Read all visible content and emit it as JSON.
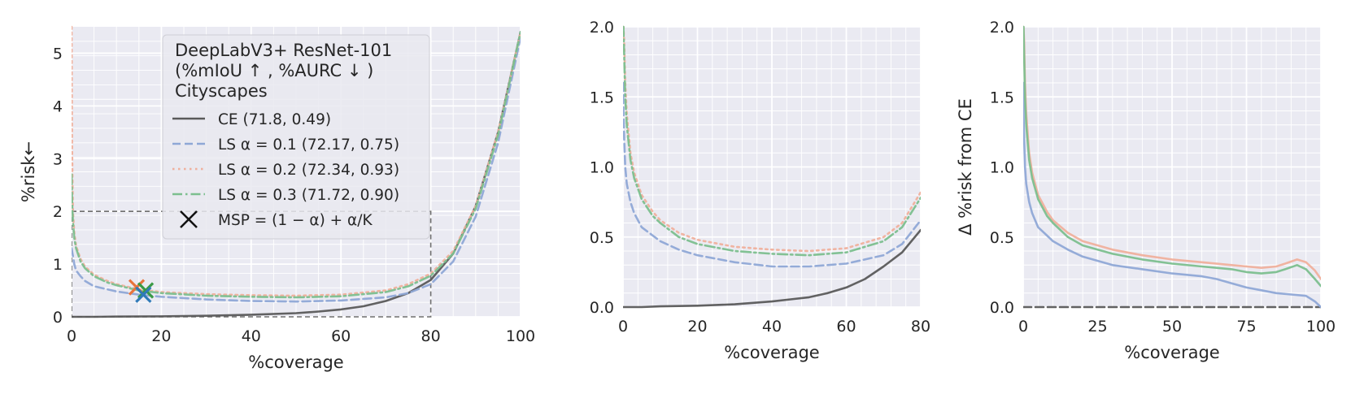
{
  "chart_data": [
    {
      "type": "line",
      "xlabel": "%coverage",
      "ylabel": "%risk←",
      "xlim": [
        0,
        100
      ],
      "ylim": [
        0,
        5.5
      ],
      "xticks": [
        "0",
        "20",
        "40",
        "60",
        "80",
        "100"
      ],
      "yticks": [
        "0",
        "1",
        "2",
        "3",
        "4",
        "5"
      ],
      "grid": true,
      "legend": {
        "placement": "upper-center",
        "title_lines": [
          "DeepLabV3+ ResNet-101",
          "(%mIoU ↑ , %AURC ↓ )",
          "Cityscapes"
        ],
        "entries": [
          "CE (71.8, 0.49)",
          "LS α = 0.1 (72.17, 0.75)",
          "LS α = 0.2 (72.34, 0.93)",
          "LS α = 0.3 (71.72, 0.90)",
          "MSP = (1 − α) + α/K"
        ]
      },
      "inset_box": {
        "x": [
          0,
          80
        ],
        "y": [
          0,
          2
        ]
      },
      "series": [
        {
          "name": "CE (71.8, 0.49)",
          "color": "#5a5a5a",
          "style": "solid",
          "x": [
            0,
            0.3,
            1,
            5,
            10,
            20,
            30,
            40,
            50,
            55,
            60,
            65,
            70,
            75,
            80,
            85,
            90,
            95,
            100
          ],
          "y": [
            0.0,
            0.0,
            0.0,
            0.0,
            0.005,
            0.01,
            0.02,
            0.04,
            0.07,
            0.1,
            0.14,
            0.2,
            0.3,
            0.45,
            0.7,
            1.2,
            2.1,
            3.5,
            5.4
          ]
        },
        {
          "name": "LS α = 0.1 (72.17, 0.75)",
          "color": "#8fa8d6",
          "style": "dashed",
          "x": [
            0,
            0.1,
            0.3,
            0.6,
            1,
            2,
            3,
            5,
            8,
            10,
            15,
            20,
            30,
            40,
            50,
            60,
            70,
            75,
            80,
            85,
            90,
            95,
            100
          ],
          "y": [
            1.3,
            1.25,
            1.15,
            1.0,
            0.88,
            0.77,
            0.68,
            0.58,
            0.52,
            0.48,
            0.42,
            0.38,
            0.33,
            0.3,
            0.29,
            0.31,
            0.37,
            0.45,
            0.62,
            1.05,
            1.9,
            3.3,
            5.3
          ]
        },
        {
          "name": "LS α = 0.2 (72.34, 0.93)",
          "color": "#f0b09c",
          "style": "dotted",
          "x": [
            0,
            0.1,
            0.3,
            0.6,
            1,
            2,
            3,
            5,
            8,
            10,
            15,
            20,
            30,
            40,
            50,
            60,
            70,
            75,
            80,
            85,
            90,
            95,
            100
          ],
          "y": [
            5.5,
            3.2,
            2.0,
            1.6,
            1.35,
            1.1,
            0.95,
            0.8,
            0.68,
            0.62,
            0.52,
            0.47,
            0.43,
            0.41,
            0.4,
            0.42,
            0.5,
            0.62,
            0.82,
            1.25,
            2.1,
            3.5,
            5.4
          ]
        },
        {
          "name": "LS α = 0.3 (71.72, 0.90)",
          "color": "#7cbf8e",
          "style": "dashdot",
          "x": [
            0,
            0.1,
            0.3,
            0.6,
            1,
            2,
            3,
            5,
            8,
            10,
            15,
            20,
            30,
            40,
            50,
            60,
            70,
            75,
            80,
            85,
            90,
            95,
            100
          ],
          "y": [
            2.7,
            2.2,
            1.8,
            1.5,
            1.3,
            1.05,
            0.92,
            0.77,
            0.65,
            0.6,
            0.5,
            0.45,
            0.4,
            0.38,
            0.37,
            0.39,
            0.47,
            0.58,
            0.78,
            1.2,
            2.05,
            3.45,
            5.4
          ]
        }
      ],
      "markers": [
        {
          "label": "MSP = (1 − α) + α/K",
          "x": 14.5,
          "y": 0.56,
          "color": "#e8743b"
        },
        {
          "label": "MSP = (1 − α) + α/K",
          "x": 16.5,
          "y": 0.5,
          "color": "#3a9a46"
        },
        {
          "label": "MSP = (1 − α) + α/K",
          "x": 16.0,
          "y": 0.42,
          "color": "#2f7ab8"
        }
      ]
    },
    {
      "type": "line",
      "xlabel": "%coverage",
      "ylabel": "",
      "xlim": [
        0,
        80
      ],
      "ylim": [
        0,
        2.0
      ],
      "xticks": [
        "0",
        "20",
        "40",
        "60",
        "80"
      ],
      "yticks": [
        "0.0",
        "0.5",
        "1.0",
        "1.5",
        "2.0"
      ],
      "grid": true,
      "series": [
        {
          "name": "CE (71.8, 0.49)",
          "color": "#5a5a5a",
          "style": "solid",
          "x": [
            0,
            0.3,
            1,
            5,
            10,
            20,
            30,
            40,
            45,
            50,
            55,
            60,
            65,
            70,
            75,
            80
          ],
          "y": [
            0.0,
            0.0,
            0.0,
            0.0,
            0.005,
            0.01,
            0.02,
            0.04,
            0.055,
            0.07,
            0.1,
            0.14,
            0.2,
            0.29,
            0.39,
            0.55
          ]
        },
        {
          "name": "LS α = 0.1 (72.17, 0.75)",
          "color": "#8fa8d6",
          "style": "dashed",
          "x": [
            0,
            0.1,
            0.3,
            0.6,
            1,
            2,
            3,
            5,
            8,
            10,
            15,
            20,
            30,
            40,
            50,
            60,
            70,
            75,
            80
          ],
          "y": [
            1.6,
            1.4,
            1.2,
            1.0,
            0.88,
            0.75,
            0.67,
            0.57,
            0.51,
            0.47,
            0.41,
            0.37,
            0.32,
            0.29,
            0.29,
            0.31,
            0.37,
            0.45,
            0.62
          ]
        },
        {
          "name": "LS α = 0.2 (72.34, 0.93)",
          "color": "#f0b09c",
          "style": "dotted",
          "x": [
            0,
            0.1,
            0.3,
            0.6,
            1,
            2,
            3,
            5,
            8,
            10,
            15,
            20,
            30,
            40,
            50,
            60,
            70,
            75,
            80
          ],
          "y": [
            2.0,
            2.0,
            1.9,
            1.6,
            1.38,
            1.1,
            0.96,
            0.8,
            0.68,
            0.62,
            0.53,
            0.48,
            0.43,
            0.41,
            0.4,
            0.42,
            0.5,
            0.6,
            0.82
          ]
        },
        {
          "name": "LS α = 0.3 (71.72, 0.90)",
          "color": "#7cbf8e",
          "style": "dashdot",
          "x": [
            0,
            0.1,
            0.3,
            0.6,
            1,
            2,
            3,
            5,
            8,
            10,
            15,
            20,
            30,
            40,
            50,
            60,
            70,
            75,
            80
          ],
          "y": [
            2.0,
            2.0,
            1.8,
            1.5,
            1.3,
            1.05,
            0.92,
            0.77,
            0.65,
            0.6,
            0.5,
            0.45,
            0.4,
            0.38,
            0.37,
            0.39,
            0.47,
            0.57,
            0.78
          ]
        }
      ]
    },
    {
      "type": "line",
      "xlabel": "%coverage",
      "ylabel": "Δ %risk from CE",
      "xlim": [
        0,
        100
      ],
      "ylim": [
        0,
        2.0
      ],
      "xticks": [
        "0",
        "25",
        "50",
        "75",
        "100"
      ],
      "yticks": [
        "0.0",
        "0.5",
        "1.0",
        "1.5",
        "2.0"
      ],
      "grid": true,
      "series": [
        {
          "name": "CE (71.8, 0.49)",
          "color": "#5a5a5a",
          "style": "dashed",
          "x": [
            0,
            100
          ],
          "y": [
            0.0,
            0.0
          ]
        },
        {
          "name": "LS α = 0.1 (72.17, 0.75)",
          "color": "#8fa8d6",
          "style": "solid",
          "x": [
            0,
            0.1,
            0.3,
            0.6,
            1,
            2,
            3,
            5,
            8,
            10,
            15,
            20,
            30,
            40,
            50,
            60,
            65,
            70,
            75,
            80,
            85,
            90,
            95,
            98,
            100
          ],
          "y": [
            1.6,
            1.4,
            1.2,
            1.0,
            0.88,
            0.75,
            0.67,
            0.57,
            0.51,
            0.47,
            0.41,
            0.36,
            0.3,
            0.27,
            0.24,
            0.22,
            0.2,
            0.17,
            0.14,
            0.12,
            0.1,
            0.09,
            0.08,
            0.04,
            0.0
          ]
        },
        {
          "name": "LS α = 0.2 (72.34, 0.93)",
          "color": "#f0b09c",
          "style": "solid",
          "x": [
            0,
            0.1,
            0.3,
            0.6,
            1,
            2,
            3,
            5,
            8,
            10,
            15,
            20,
            30,
            40,
            50,
            60,
            70,
            75,
            80,
            85,
            88,
            92,
            95,
            98,
            100
          ],
          "y": [
            2.0,
            2.0,
            1.9,
            1.6,
            1.38,
            1.1,
            0.96,
            0.8,
            0.68,
            0.62,
            0.53,
            0.47,
            0.41,
            0.37,
            0.34,
            0.32,
            0.3,
            0.29,
            0.28,
            0.29,
            0.31,
            0.34,
            0.32,
            0.26,
            0.2
          ]
        },
        {
          "name": "LS α = 0.3 (71.72, 0.90)",
          "color": "#7cbf8e",
          "style": "solid",
          "x": [
            0,
            0.1,
            0.3,
            0.6,
            1,
            2,
            3,
            5,
            8,
            10,
            15,
            20,
            30,
            40,
            50,
            60,
            70,
            75,
            80,
            85,
            88,
            92,
            95,
            98,
            100
          ],
          "y": [
            2.0,
            2.0,
            1.8,
            1.5,
            1.3,
            1.05,
            0.92,
            0.77,
            0.65,
            0.6,
            0.5,
            0.44,
            0.38,
            0.34,
            0.31,
            0.29,
            0.27,
            0.25,
            0.24,
            0.25,
            0.27,
            0.3,
            0.27,
            0.2,
            0.15
          ]
        }
      ]
    }
  ]
}
